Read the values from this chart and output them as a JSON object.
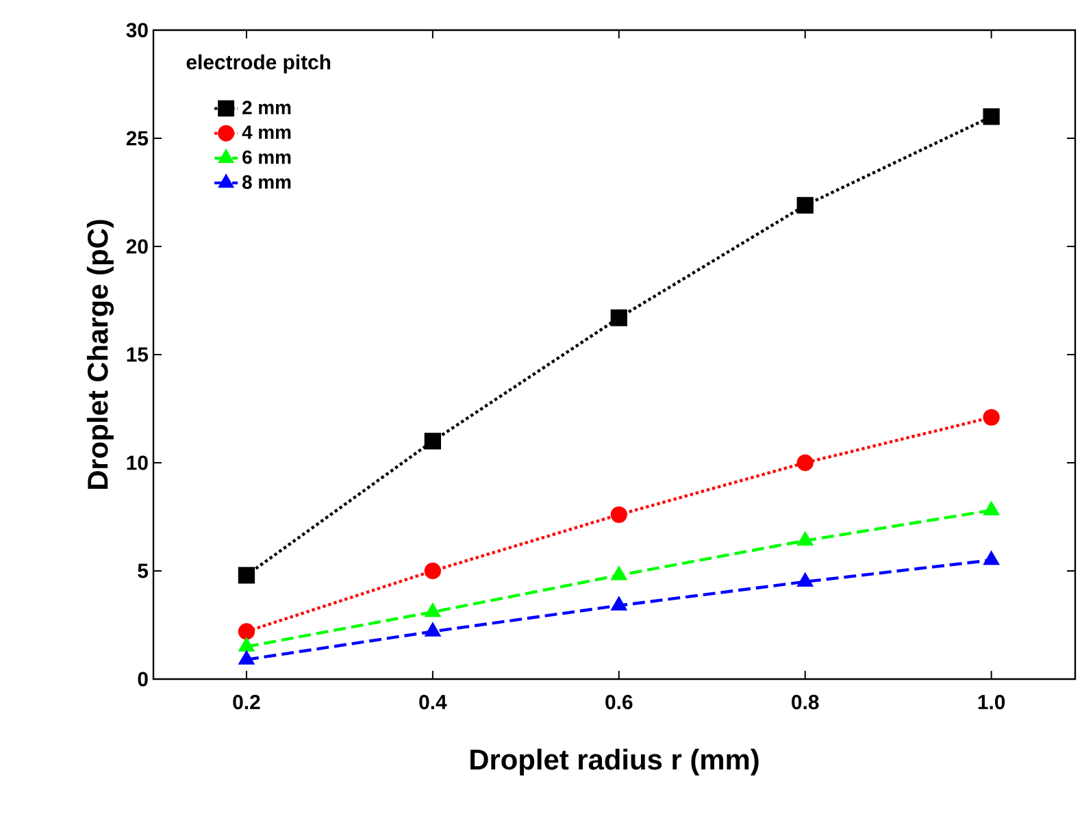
{
  "chart_data": {
    "type": "line",
    "xlabel": "Droplet radius r (mm)",
    "ylabel": "Droplet Charge (pC)",
    "legend_title": "electrode pitch",
    "legend": "top left",
    "grid": false,
    "x": [
      0.2,
      0.4,
      0.6,
      0.8,
      1.0
    ],
    "xlim": [
      0.1,
      1.09
    ],
    "ylim": [
      0,
      30
    ],
    "xticks": [
      0.2,
      0.4,
      0.6,
      0.8,
      {
        "value": 1.0,
        "label": "1.0"
      }
    ],
    "yticks": [
      0,
      5,
      10,
      15,
      20,
      25,
      30
    ],
    "series": [
      {
        "name": "2 mm",
        "color": "#000000",
        "marker": "square",
        "line_style": "dotted",
        "values": [
          4.8,
          11.0,
          16.7,
          21.9,
          26.0
        ]
      },
      {
        "name": "4 mm",
        "color": "#ff0000",
        "marker": "circle",
        "line_style": "dotted",
        "values": [
          2.2,
          5.0,
          7.6,
          10.0,
          12.1
        ]
      },
      {
        "name": "6 mm",
        "color": "#00ff00",
        "marker": "triangle",
        "line_style": "dashed",
        "values": [
          1.5,
          3.1,
          4.8,
          6.4,
          7.8
        ]
      },
      {
        "name": "8 mm",
        "color": "#0000ff",
        "marker": "triangle down",
        "line_style": "dashed",
        "values": [
          0.9,
          2.2,
          3.4,
          4.5,
          5.5
        ]
      }
    ]
  }
}
